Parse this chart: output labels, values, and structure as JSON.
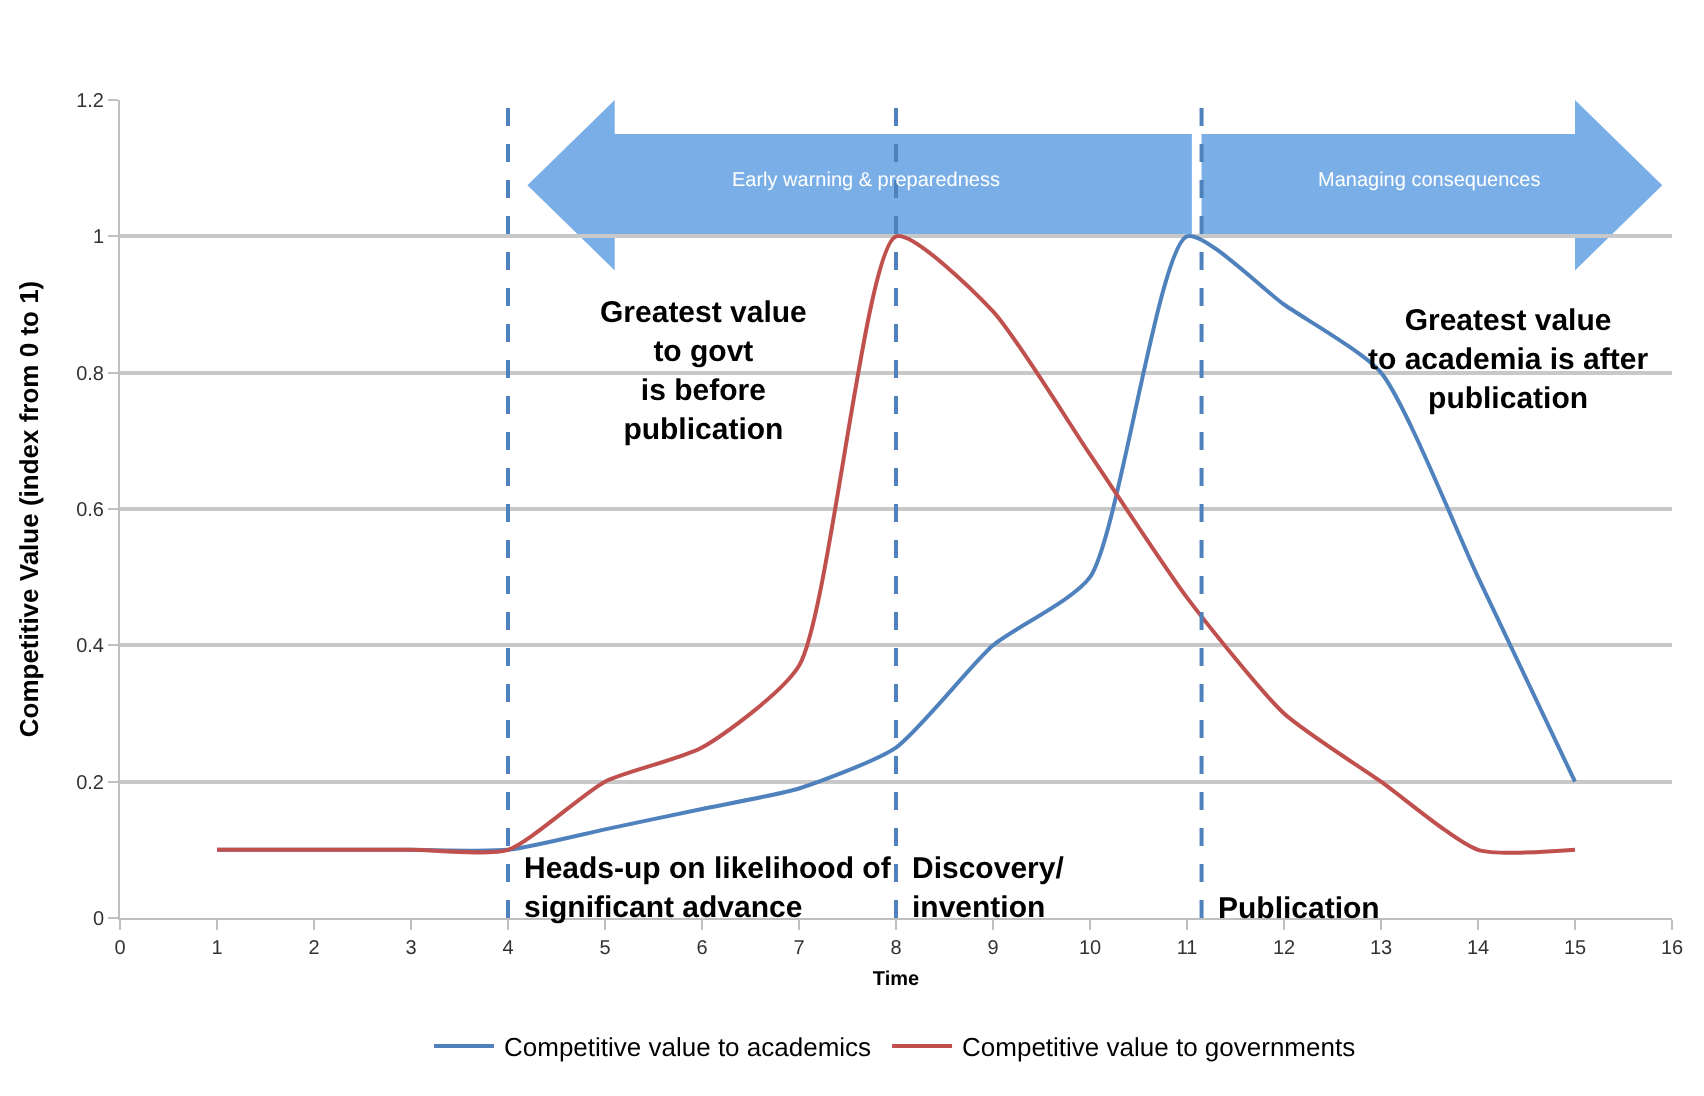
{
  "chart_data": {
    "type": "line",
    "xlabel": "Time",
    "ylabel": "Competitive Value (index from 0 to 1)",
    "x": [
      1,
      2,
      3,
      4,
      5,
      6,
      7,
      8,
      9,
      10,
      11,
      12,
      13,
      14,
      15
    ],
    "series": [
      {
        "name": "Competitive value to academics",
        "color": "#4f81bd",
        "values": [
          0.1,
          0.1,
          0.1,
          0.1,
          0.13,
          0.16,
          0.19,
          0.25,
          0.4,
          0.5,
          1.0,
          0.9,
          0.8,
          0.5,
          0.2
        ]
      },
      {
        "name": "Competitive value to governments",
        "color": "#c0504d",
        "values": [
          0.1,
          0.1,
          0.1,
          0.1,
          0.2,
          0.25,
          0.37,
          1.0,
          0.89,
          0.68,
          0.47,
          0.3,
          0.2,
          0.1,
          0.1
        ]
      }
    ],
    "xlim": [
      0,
      16
    ],
    "xticks": [
      0,
      1,
      2,
      3,
      4,
      5,
      6,
      7,
      8,
      9,
      10,
      11,
      12,
      13,
      14,
      15,
      16
    ],
    "ylim": [
      0,
      1.2
    ],
    "yticks": [
      0,
      0.2,
      0.4,
      0.6,
      0.8,
      1,
      1.2
    ],
    "ref_lines": [
      {
        "axis": "x",
        "value": 4,
        "label": "Heads-up on likelihood of\nsignificant advance",
        "color": "#4f81bd",
        "line_style": "dashed"
      },
      {
        "axis": "x",
        "value": 8,
        "label": "Discovery/\ninvention",
        "color": "#4f81bd",
        "line_style": "dashed"
      },
      {
        "axis": "x",
        "value": 11.15,
        "label": "Publication",
        "color": "#4f81bd",
        "line_style": "dashed"
      }
    ],
    "annotations": [
      "Early warning & preparedness",
      "Managing consequences",
      "Greatest value\nto govt\nis before\npublication",
      "Greatest value\nto academia is after\npublication"
    ],
    "grid": "y",
    "legend": "bottom",
    "marker": "none",
    "line_style": "solid"
  }
}
